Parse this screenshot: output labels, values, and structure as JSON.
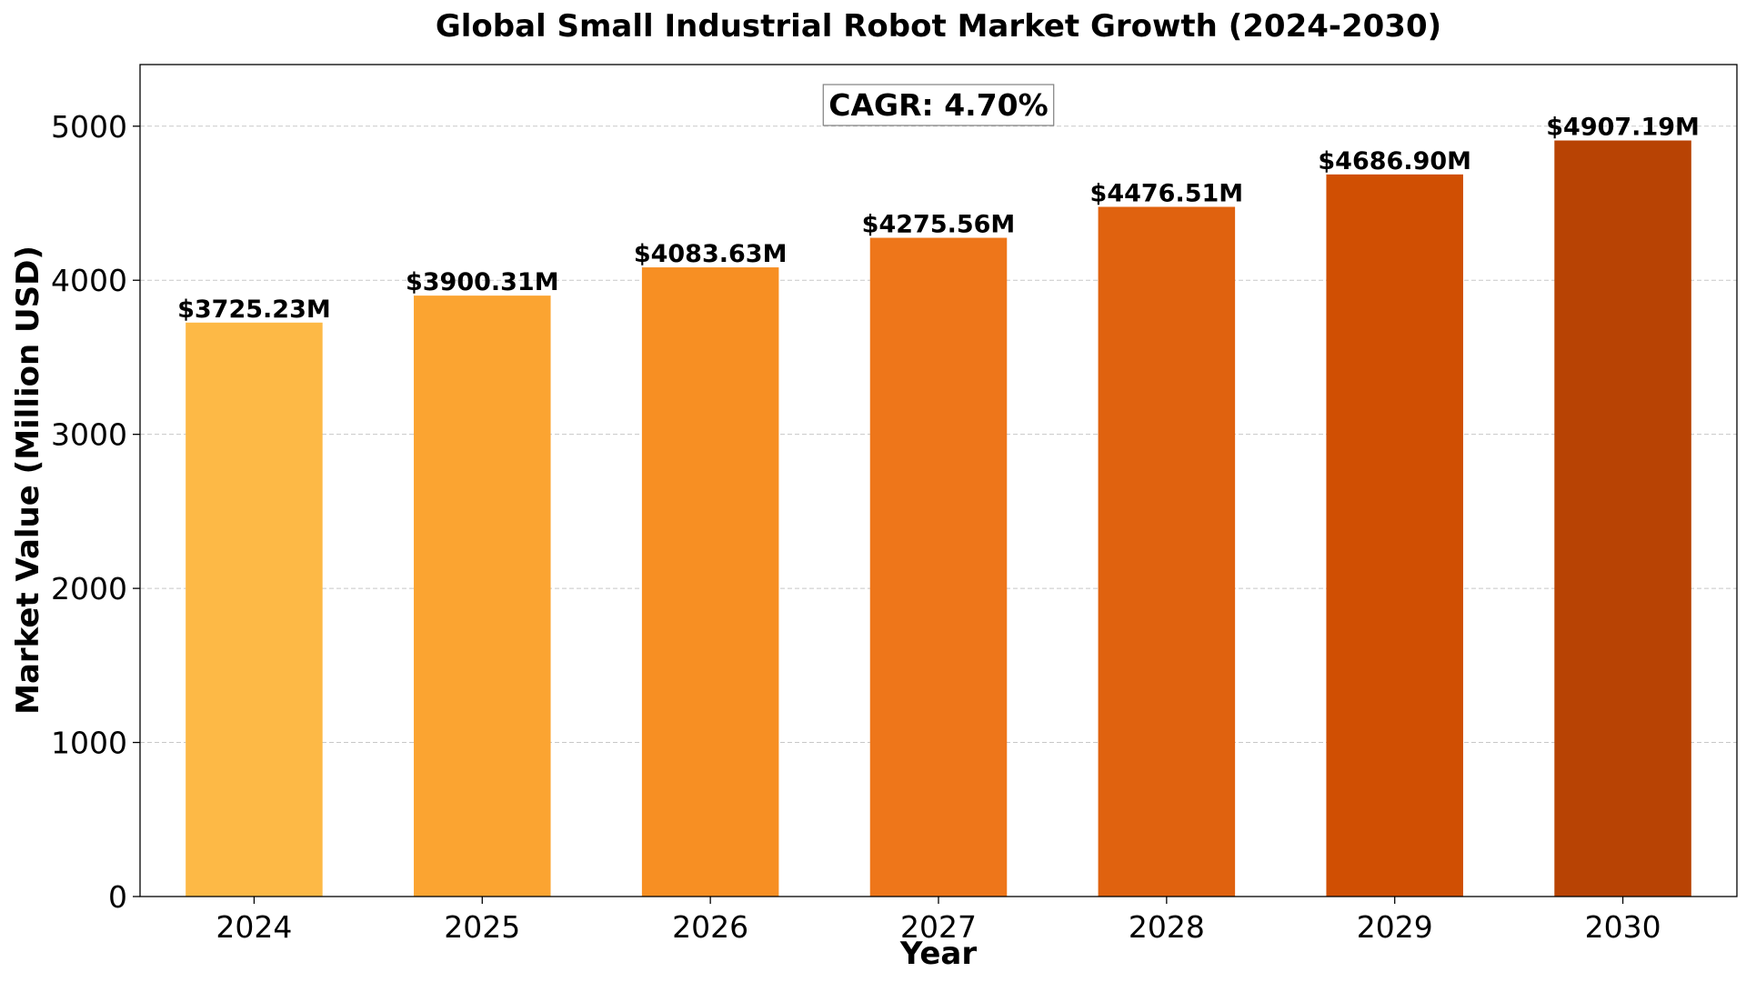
{
  "chart_data": {
    "type": "bar",
    "title": "Global Small Industrial Robot Market Growth (2024-2030)",
    "xlabel": "Year",
    "ylabel": "Market Value (Million USD)",
    "categories": [
      "2024",
      "2025",
      "2026",
      "2027",
      "2028",
      "2029",
      "2030"
    ],
    "values": [
      3725.23,
      3900.31,
      4083.63,
      4275.56,
      4476.51,
      4686.9,
      4907.19
    ],
    "data_labels": [
      "$3725.23M",
      "$3900.31M",
      "$4083.63M",
      "$4275.56M",
      "$4476.51M",
      "$4686.90M",
      "$4907.19M"
    ],
    "bar_colors": [
      "#FDB946",
      "#FBA431",
      "#F78F23",
      "#EE761A",
      "#E0620F",
      "#D04F03",
      "#B84304"
    ],
    "ylim": [
      0,
      5400
    ],
    "yticks": [
      0,
      1000,
      2000,
      3000,
      4000,
      5000
    ],
    "grid": "horizontal dashed",
    "annotation": "CAGR: 4.70%"
  }
}
